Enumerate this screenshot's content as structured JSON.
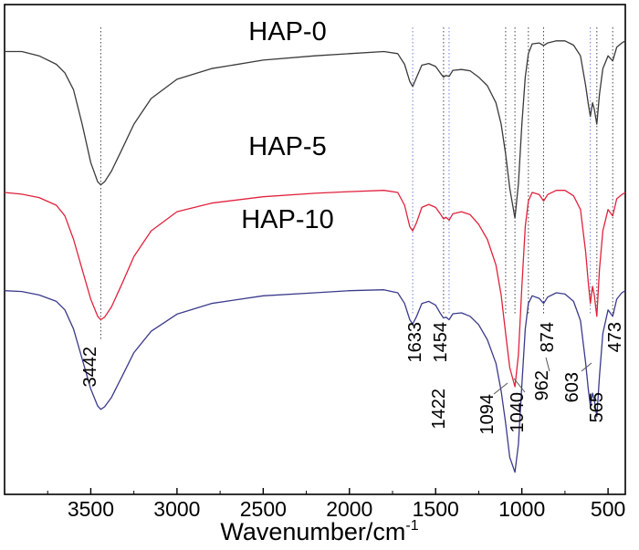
{
  "chart_data": {
    "type": "line",
    "title": "",
    "xlabel": "Wavenumber/cm",
    "xlabel_superscript": "-1",
    "ylabel": "",
    "xlim": [
      4000,
      400
    ],
    "x_reversed": true,
    "grid": false,
    "xticks": [
      3500,
      3000,
      2500,
      2000,
      1500,
      1000,
      500
    ],
    "series": [
      {
        "name": "HAP-0",
        "color": "#3a3a3a",
        "points": [
          [
            4000,
            0.89
          ],
          [
            3900,
            0.89
          ],
          [
            3800,
            0.88
          ],
          [
            3700,
            0.86
          ],
          [
            3650,
            0.84
          ],
          [
            3600,
            0.8
          ],
          [
            3550,
            0.72
          ],
          [
            3500,
            0.63
          ],
          [
            3460,
            0.585
          ],
          [
            3442,
            0.578
          ],
          [
            3420,
            0.585
          ],
          [
            3380,
            0.61
          ],
          [
            3320,
            0.66
          ],
          [
            3250,
            0.72
          ],
          [
            3150,
            0.78
          ],
          [
            3000,
            0.825
          ],
          [
            2800,
            0.85
          ],
          [
            2500,
            0.87
          ],
          [
            2200,
            0.88
          ],
          [
            2000,
            0.885
          ],
          [
            1800,
            0.89
          ],
          [
            1720,
            0.885
          ],
          [
            1680,
            0.86
          ],
          [
            1650,
            0.82
          ],
          [
            1633,
            0.808
          ],
          [
            1610,
            0.83
          ],
          [
            1580,
            0.858
          ],
          [
            1540,
            0.862
          ],
          [
            1500,
            0.855
          ],
          [
            1470,
            0.838
          ],
          [
            1454,
            0.83
          ],
          [
            1440,
            0.834
          ],
          [
            1422,
            0.832
          ],
          [
            1400,
            0.846
          ],
          [
            1350,
            0.848
          ],
          [
            1300,
            0.845
          ],
          [
            1250,
            0.83
          ],
          [
            1200,
            0.81
          ],
          [
            1150,
            0.77
          ],
          [
            1120,
            0.72
          ],
          [
            1094,
            0.65
          ],
          [
            1070,
            0.57
          ],
          [
            1040,
            0.5
          ],
          [
            1020,
            0.58
          ],
          [
            1000,
            0.72
          ],
          [
            980,
            0.83
          ],
          [
            962,
            0.885
          ],
          [
            940,
            0.908
          ],
          [
            900,
            0.91
          ],
          [
            874,
            0.904
          ],
          [
            850,
            0.91
          ],
          [
            800,
            0.915
          ],
          [
            750,
            0.915
          ],
          [
            700,
            0.905
          ],
          [
            660,
            0.88
          ],
          [
            630,
            0.81
          ],
          [
            615,
            0.768
          ],
          [
            603,
            0.738
          ],
          [
            590,
            0.77
          ],
          [
            580,
            0.755
          ],
          [
            565,
            0.72
          ],
          [
            550,
            0.79
          ],
          [
            530,
            0.85
          ],
          [
            500,
            0.88
          ],
          [
            473,
            0.868
          ],
          [
            450,
            0.9
          ],
          [
            420,
            0.91
          ],
          [
            400,
            0.915
          ]
        ]
      },
      {
        "name": "HAP-5",
        "color": "#e0223c",
        "points": [
          [
            4000,
            0.56
          ],
          [
            3900,
            0.556
          ],
          [
            3800,
            0.548
          ],
          [
            3700,
            0.53
          ],
          [
            3650,
            0.505
          ],
          [
            3600,
            0.45
          ],
          [
            3550,
            0.38
          ],
          [
            3500,
            0.31
          ],
          [
            3460,
            0.27
          ],
          [
            3442,
            0.262
          ],
          [
            3420,
            0.268
          ],
          [
            3380,
            0.292
          ],
          [
            3320,
            0.345
          ],
          [
            3250,
            0.41
          ],
          [
            3150,
            0.47
          ],
          [
            3000,
            0.515
          ],
          [
            2800,
            0.535
          ],
          [
            2500,
            0.55
          ],
          [
            2200,
            0.558
          ],
          [
            2000,
            0.562
          ],
          [
            1800,
            0.565
          ],
          [
            1720,
            0.56
          ],
          [
            1680,
            0.53
          ],
          [
            1650,
            0.48
          ],
          [
            1633,
            0.47
          ],
          [
            1610,
            0.49
          ],
          [
            1580,
            0.525
          ],
          [
            1540,
            0.532
          ],
          [
            1500,
            0.525
          ],
          [
            1470,
            0.508
          ],
          [
            1454,
            0.498
          ],
          [
            1440,
            0.502
          ],
          [
            1422,
            0.495
          ],
          [
            1400,
            0.51
          ],
          [
            1350,
            0.515
          ],
          [
            1300,
            0.508
          ],
          [
            1250,
            0.485
          ],
          [
            1200,
            0.45
          ],
          [
            1150,
            0.39
          ],
          [
            1120,
            0.32
          ],
          [
            1094,
            0.23
          ],
          [
            1070,
            0.15
          ],
          [
            1040,
            0.105
          ],
          [
            1020,
            0.18
          ],
          [
            1000,
            0.34
          ],
          [
            980,
            0.48
          ],
          [
            962,
            0.54
          ],
          [
            940,
            0.56
          ],
          [
            900,
            0.555
          ],
          [
            874,
            0.54
          ],
          [
            850,
            0.555
          ],
          [
            800,
            0.565
          ],
          [
            750,
            0.565
          ],
          [
            700,
            0.552
          ],
          [
            660,
            0.52
          ],
          [
            630,
            0.42
          ],
          [
            615,
            0.35
          ],
          [
            603,
            0.3
          ],
          [
            590,
            0.34
          ],
          [
            580,
            0.32
          ],
          [
            565,
            0.27
          ],
          [
            550,
            0.38
          ],
          [
            530,
            0.47
          ],
          [
            500,
            0.52
          ],
          [
            473,
            0.505
          ],
          [
            450,
            0.545
          ],
          [
            420,
            0.555
          ],
          [
            400,
            0.56
          ]
        ]
      },
      {
        "name": "HAP-10",
        "color": "#3a3a8c",
        "points": [
          [
            4000,
            0.33
          ],
          [
            3900,
            0.328
          ],
          [
            3800,
            0.32
          ],
          [
            3700,
            0.305
          ],
          [
            3650,
            0.285
          ],
          [
            3600,
            0.24
          ],
          [
            3550,
            0.17
          ],
          [
            3500,
            0.1
          ],
          [
            3460,
            0.06
          ],
          [
            3442,
            0.052
          ],
          [
            3420,
            0.058
          ],
          [
            3380,
            0.08
          ],
          [
            3320,
            0.128
          ],
          [
            3250,
            0.185
          ],
          [
            3150,
            0.235
          ],
          [
            3000,
            0.275
          ],
          [
            2800,
            0.3
          ],
          [
            2500,
            0.318
          ],
          [
            2200,
            0.325
          ],
          [
            2000,
            0.33
          ],
          [
            1800,
            0.332
          ],
          [
            1720,
            0.325
          ],
          [
            1680,
            0.3
          ],
          [
            1650,
            0.262
          ],
          [
            1633,
            0.252
          ],
          [
            1610,
            0.27
          ],
          [
            1580,
            0.3
          ],
          [
            1540,
            0.305
          ],
          [
            1500,
            0.296
          ],
          [
            1470,
            0.275
          ],
          [
            1454,
            0.266
          ],
          [
            1440,
            0.268
          ],
          [
            1422,
            0.262
          ],
          [
            1400,
            0.276
          ],
          [
            1350,
            0.278
          ],
          [
            1300,
            0.27
          ],
          [
            1250,
            0.25
          ],
          [
            1200,
            0.215
          ],
          [
            1150,
            0.16
          ],
          [
            1120,
            0.095
          ],
          [
            1094,
            0.02
          ],
          [
            1070,
            -0.06
          ],
          [
            1040,
            -0.095
          ],
          [
            1020,
            -0.03
          ],
          [
            1000,
            0.11
          ],
          [
            980,
            0.24
          ],
          [
            962,
            0.3
          ],
          [
            940,
            0.318
          ],
          [
            900,
            0.312
          ],
          [
            874,
            0.3
          ],
          [
            850,
            0.315
          ],
          [
            800,
            0.325
          ],
          [
            750,
            0.322
          ],
          [
            700,
            0.305
          ],
          [
            660,
            0.26
          ],
          [
            630,
            0.16
          ],
          [
            615,
            0.1
          ],
          [
            603,
            0.06
          ],
          [
            590,
            0.09
          ],
          [
            580,
            0.075
          ],
          [
            565,
            0.035
          ],
          [
            550,
            0.13
          ],
          [
            530,
            0.23
          ],
          [
            500,
            0.285
          ],
          [
            473,
            0.27
          ],
          [
            450,
            0.31
          ],
          [
            420,
            0.325
          ],
          [
            400,
            0.33
          ]
        ]
      }
    ],
    "annotations": [
      "3442",
      "1633",
      "1454",
      "1422",
      "1094",
      "1040",
      "962",
      "874",
      "603",
      "565",
      "473"
    ],
    "marker_lines": [
      3442,
      1633,
      1454,
      1422,
      1094,
      1040,
      962,
      874,
      603,
      565,
      473
    ]
  }
}
